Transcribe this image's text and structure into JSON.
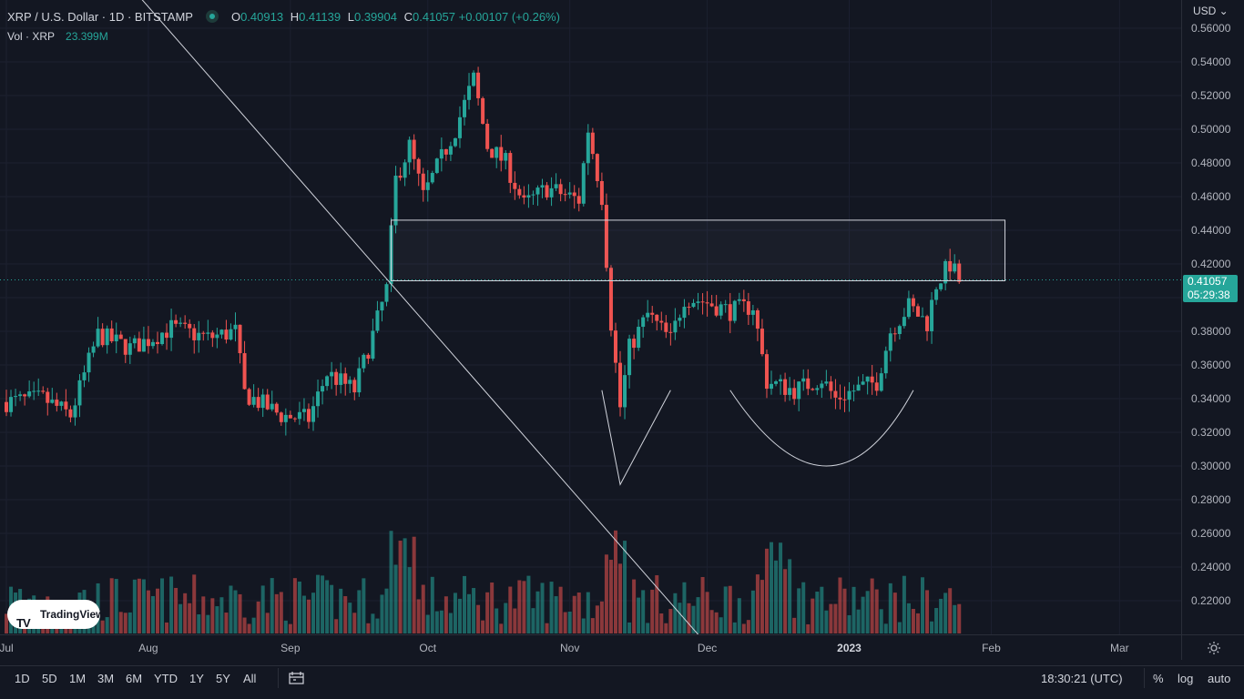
{
  "header": {
    "symbol": "XRP / U.S. Dollar · 1D · BITSTAMP",
    "ohlc": [
      {
        "k": "O",
        "v": "0.40913"
      },
      {
        "k": "H",
        "v": "0.41139"
      },
      {
        "k": "L",
        "v": "0.39904"
      },
      {
        "k": "C",
        "v": "0.41057"
      }
    ],
    "change": "+0.00107 (+0.26%)",
    "volume_label": "Vol · XRP",
    "volume_value": "23.399M"
  },
  "price_axis": {
    "currency": "USD",
    "current_price": "0.41057",
    "countdown": "05:29:38"
  },
  "bottom_bar": {
    "ranges": [
      "1D",
      "5D",
      "1M",
      "3M",
      "6M",
      "YTD",
      "1Y",
      "5Y",
      "All"
    ],
    "clock": "18:30:21 (UTC)",
    "options": [
      "%",
      "log",
      "auto"
    ]
  },
  "branding": {
    "logo_text": "TradingView"
  },
  "colors": {
    "up": "#26a69a",
    "down": "#ef5350",
    "background": "#131722",
    "drawing": "#d1d4dc"
  },
  "chart_data": {
    "type": "candlestick",
    "y_ticks": [
      0.22,
      0.24,
      0.26,
      0.28,
      0.3,
      0.32,
      0.34,
      0.36,
      0.38,
      0.4,
      0.42,
      0.44,
      0.46,
      0.48,
      0.5,
      0.52,
      0.54,
      0.56
    ],
    "ylim": [
      0.2,
      0.56
    ],
    "x_labels": [
      {
        "label": "Jul",
        "day": 0
      },
      {
        "label": "Aug",
        "day": 31
      },
      {
        "label": "Sep",
        "day": 62
      },
      {
        "label": "Oct",
        "day": 92
      },
      {
        "label": "Nov",
        "day": 123
      },
      {
        "label": "Dec",
        "day": 153
      },
      {
        "label": "2023",
        "day": 184
      },
      {
        "label": "Feb",
        "day": 215
      },
      {
        "label": "Mar",
        "day": 243
      }
    ],
    "series_points": [
      {
        "day": 0,
        "p": 0.338
      },
      {
        "day": 8,
        "p": 0.34
      },
      {
        "day": 14,
        "p": 0.33
      },
      {
        "day": 20,
        "p": 0.378
      },
      {
        "day": 27,
        "p": 0.37
      },
      {
        "day": 31,
        "p": 0.375
      },
      {
        "day": 36,
        "p": 0.382
      },
      {
        "day": 44,
        "p": 0.376
      },
      {
        "day": 50,
        "p": 0.38
      },
      {
        "day": 52,
        "p": 0.343
      },
      {
        "day": 60,
        "p": 0.33
      },
      {
        "day": 66,
        "p": 0.328
      },
      {
        "day": 70,
        "p": 0.355
      },
      {
        "day": 76,
        "p": 0.345
      },
      {
        "day": 80,
        "p": 0.378
      },
      {
        "day": 83,
        "p": 0.405
      },
      {
        "day": 85,
        "p": 0.47
      },
      {
        "day": 88,
        "p": 0.49
      },
      {
        "day": 91,
        "p": 0.46
      },
      {
        "day": 98,
        "p": 0.5
      },
      {
        "day": 102,
        "p": 0.53
      },
      {
        "day": 105,
        "p": 0.49
      },
      {
        "day": 109,
        "p": 0.48
      },
      {
        "day": 113,
        "p": 0.455
      },
      {
        "day": 118,
        "p": 0.465
      },
      {
        "day": 125,
        "p": 0.458
      },
      {
        "day": 127,
        "p": 0.5
      },
      {
        "day": 130,
        "p": 0.46
      },
      {
        "day": 132,
        "p": 0.385
      },
      {
        "day": 134,
        "p": 0.335
      },
      {
        "day": 136,
        "p": 0.37
      },
      {
        "day": 140,
        "p": 0.39
      },
      {
        "day": 145,
        "p": 0.375
      },
      {
        "day": 148,
        "p": 0.4
      },
      {
        "day": 152,
        "p": 0.398
      },
      {
        "day": 158,
        "p": 0.392
      },
      {
        "day": 163,
        "p": 0.395
      },
      {
        "day": 166,
        "p": 0.35
      },
      {
        "day": 172,
        "p": 0.345
      },
      {
        "day": 178,
        "p": 0.352
      },
      {
        "day": 181,
        "p": 0.34
      },
      {
        "day": 185,
        "p": 0.345
      },
      {
        "day": 190,
        "p": 0.35
      },
      {
        "day": 193,
        "p": 0.38
      },
      {
        "day": 197,
        "p": 0.395
      },
      {
        "day": 201,
        "p": 0.385
      },
      {
        "day": 203,
        "p": 0.408
      },
      {
        "day": 206,
        "p": 0.42
      },
      {
        "day": 208,
        "p": 0.41
      }
    ],
    "volume_series_note": "",
    "horizontal_line": 0.41057,
    "annotations": {
      "rectangle": {
        "day_from": 84,
        "day_to": 218,
        "price_from": 0.41,
        "price_to": 0.446
      },
      "trendline": [
        {
          "day": 28,
          "price": 0.582
        },
        {
          "day": 151,
          "price": 0.2
        }
      ],
      "v_shape": [
        {
          "day": 130,
          "price": 0.345
        },
        {
          "day": 134,
          "price": 0.289
        },
        {
          "day": 145,
          "price": 0.345
        }
      ],
      "arc": [
        {
          "day": 158,
          "price": 0.345
        },
        {
          "day": 180,
          "price": 0.3
        },
        {
          "day": 198,
          "price": 0.345
        }
      ]
    }
  }
}
